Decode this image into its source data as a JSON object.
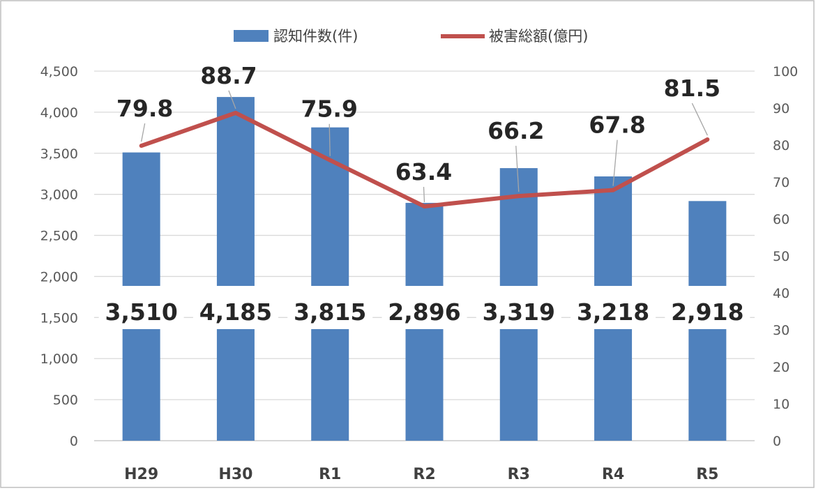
{
  "chart_data": {
    "type": "bar",
    "categories": [
      "H29",
      "H30",
      "R1",
      "R2",
      "R3",
      "R4",
      "R5"
    ],
    "series": [
      {
        "name": "認知件数(件)",
        "type": "bar",
        "axis": "left",
        "color": "#4F81BD",
        "values": [
          3510,
          4185,
          3815,
          2896,
          3319,
          3218,
          2918
        ],
        "labels": [
          "3,510",
          "4,185",
          "3,815",
          "2,896",
          "3,319",
          "3,218",
          "2,918"
        ]
      },
      {
        "name": "被害総額(億円)",
        "type": "line",
        "axis": "right",
        "color": "#C0504D",
        "values": [
          79.8,
          88.7,
          75.9,
          63.4,
          66.2,
          67.8,
          81.5
        ],
        "labels": [
          "79.8",
          "88.7",
          "75.9",
          "63.4",
          "66.2",
          "67.8",
          "81.5"
        ]
      }
    ],
    "y_left": {
      "ylim": [
        0,
        4500
      ],
      "ticks": [
        "0",
        "500",
        "1,000",
        "1,500",
        "2,000",
        "2,500",
        "3,000",
        "3,500",
        "4,000",
        "4,500"
      ]
    },
    "y_right": {
      "ylim": [
        0,
        100
      ],
      "ticks": [
        "0",
        "10",
        "20",
        "30",
        "40",
        "50",
        "60",
        "70",
        "80",
        "90",
        "100"
      ]
    },
    "grid": true,
    "legend_position": "top-center",
    "title": "",
    "xlabel": "",
    "ylabel": ""
  }
}
